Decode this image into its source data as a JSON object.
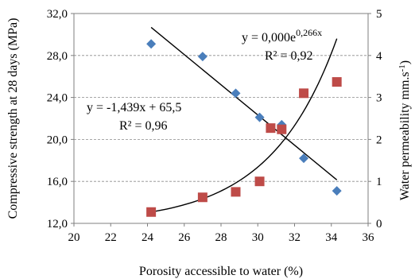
{
  "chart_data": {
    "type": "scatter",
    "xlabel": "Porosity accessible to water (%)",
    "ylabel_left": "Compressive strength at 28 days (MPa)",
    "ylabel_right": "Water permeability  mm.s",
    "ylabel_right_sup": "-1",
    "x_ticks": [
      "20",
      "22",
      "24",
      "26",
      "28",
      "30",
      "32",
      "34",
      "36"
    ],
    "y_left_ticks": [
      "12,0",
      "16,0",
      "20,0",
      "24,0",
      "28,0",
      "32,0"
    ],
    "y_right_ticks": [
      "0",
      "1",
      "2",
      "3",
      "4",
      "5"
    ],
    "xlim": [
      20,
      36
    ],
    "ylim_left": [
      12,
      32
    ],
    "ylim_right": [
      0,
      5
    ],
    "grid": true,
    "series": [
      {
        "axis": "left",
        "color": "#4a7ebb",
        "marker": "diamond",
        "x": [
          24.2,
          27.0,
          28.8,
          30.1,
          31.3,
          32.5,
          34.3
        ],
        "y": [
          29.1,
          27.9,
          24.4,
          22.1,
          21.4,
          18.2,
          15.1
        ]
      },
      {
        "axis": "right",
        "color": "#be4b48",
        "marker": "square",
        "x": [
          24.2,
          27.0,
          28.8,
          30.1,
          30.7,
          31.3,
          32.5,
          34.3
        ],
        "y": [
          0.27,
          0.62,
          0.75,
          1.0,
          2.27,
          2.24,
          3.1,
          3.37
        ]
      }
    ],
    "trendlines": [
      {
        "axis": "left",
        "type": "linear",
        "slope": -1.439,
        "intercept": 65.5,
        "x_range": [
          24.2,
          34.3
        ]
      },
      {
        "axis": "right",
        "type": "exponential",
        "x_range": [
          24.2,
          34.3
        ],
        "y_at_start": 0.27,
        "y_at_end": 4.4
      }
    ],
    "annotations": {
      "exp_eq_main": "y = 0,000e",
      "exp_eq_exp": "0,266x",
      "exp_r2": "R² = 0,92",
      "lin_eq": "y = -1,439x + 65,5",
      "lin_r2": "R² = 0,96"
    }
  }
}
